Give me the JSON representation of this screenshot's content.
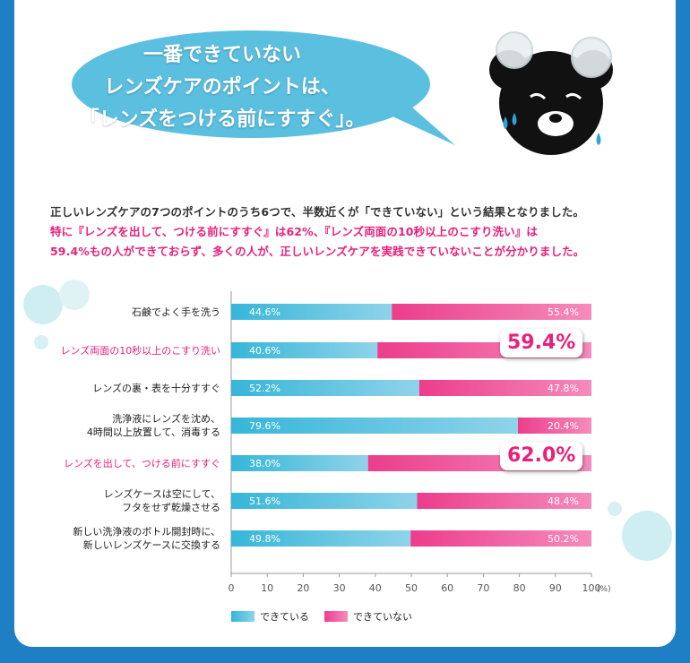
{
  "headline": {
    "line1": "一番できていない",
    "line2": "レンズケアのポイントは、",
    "line3": "「レンズをつける前にすすぐ」。"
  },
  "intro": {
    "line1": "正しいレンズケアの7つのポイントのうち6つで、半数近くが「できていない」という結果となりました。",
    "line2": "特に『レンズを出して、つける前にすすぐ』は62%、『レンズ両面の10秒以上のこすり洗い』は",
    "line3": "59.4%もの人ができておらず、多くの人が、正しいレンズケアを実践できていないことが分かりました。"
  },
  "colors": {
    "done": "#36b6d8",
    "not_done": "#ec3d8c",
    "highlight": "#e8217a",
    "frame": "#1f7fc4",
    "bubble": "#5bbfe0"
  },
  "chart_data": {
    "type": "bar",
    "orientation": "horizontal",
    "stacked": true,
    "categories": [
      "石鹸でよく手を洗う",
      "レンズ両面の10秒以上のこすり洗い",
      "レンズの裏・表を十分すすぐ",
      "洗浄液にレンズを沈め、\n4時間以上放置して、消毒する",
      "レンズを出して、つける前にすすぐ",
      "レンズケースは空にして、\nフタをせず乾燥させる",
      "新しい洗浄液のボトル開封時に、\n新しいレンズケースに交換する"
    ],
    "highlighted_categories": [
      1,
      4
    ],
    "series": [
      {
        "name": "できている",
        "values": [
          44.6,
          40.6,
          52.2,
          79.6,
          38.0,
          51.6,
          49.8
        ]
      },
      {
        "name": "できていない",
        "values": [
          55.4,
          59.4,
          47.8,
          20.4,
          62.0,
          48.4,
          50.2
        ]
      }
    ],
    "data_labels": {
      "done": [
        "44.6%",
        "40.6%",
        "52.2%",
        "79.6%",
        "38.0%",
        "51.6%",
        "49.8%"
      ],
      "not_done": [
        "55.4%",
        "59.4%",
        "47.8%",
        "20.4%",
        "62.0%",
        "48.4%",
        "50.2%"
      ]
    },
    "callouts": [
      {
        "category_index": 1,
        "text": "59.4%"
      },
      {
        "category_index": 4,
        "text": "62.0%"
      }
    ],
    "x_ticks": [
      "0",
      "10",
      "20",
      "30",
      "40",
      "50",
      "60",
      "70",
      "80",
      "90",
      "100"
    ],
    "x_unit": "(%)",
    "xlim": [
      0,
      100
    ],
    "grid": false,
    "legend_position": "bottom-left"
  }
}
